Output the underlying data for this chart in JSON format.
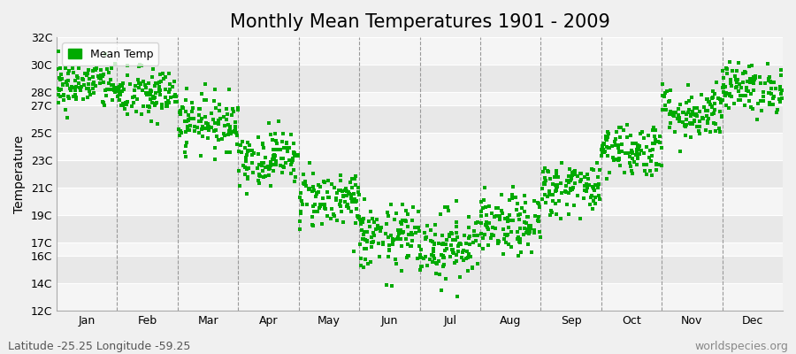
{
  "title": "Monthly Mean Temperatures 1901 - 2009",
  "ylabel": "Temperature",
  "footer_left": "Latitude -25.25 Longitude -59.25",
  "footer_right": "worldspecies.org",
  "legend_label": "Mean Temp",
  "marker_color": "#00aa00",
  "marker_size": 5,
  "ylim": [
    12,
    32
  ],
  "ytick_positions": [
    12,
    14,
    16,
    17,
    19,
    21,
    23,
    25,
    27,
    28,
    30,
    32
  ],
  "ytick_labels": [
    "12C",
    "14C",
    "16C",
    "17C",
    "19C",
    "21C",
    "23C",
    "25C",
    "27C",
    "28C",
    "30C",
    "32C"
  ],
  "months": [
    "Jan",
    "Feb",
    "Mar",
    "Apr",
    "May",
    "Jun",
    "Jul",
    "Aug",
    "Sep",
    "Oct",
    "Nov",
    "Dec"
  ],
  "mean_temps": [
    28.5,
    27.8,
    25.8,
    23.2,
    20.2,
    17.3,
    16.8,
    18.2,
    21.0,
    23.8,
    26.5,
    28.3
  ],
  "temp_std": [
    0.9,
    1.0,
    1.0,
    1.0,
    1.1,
    1.2,
    1.3,
    1.1,
    1.0,
    1.0,
    1.0,
    0.9
  ],
  "n_years": 109,
  "seed": 42,
  "bg_color": "#f0f0f0",
  "band_colors": [
    "#f5f5f5",
    "#e8e8e8"
  ],
  "grid_line_color": "#ffffff",
  "dashed_line_color": "#999999",
  "title_fontsize": 15,
  "tick_fontsize": 9,
  "label_fontsize": 10,
  "footer_fontsize": 9
}
